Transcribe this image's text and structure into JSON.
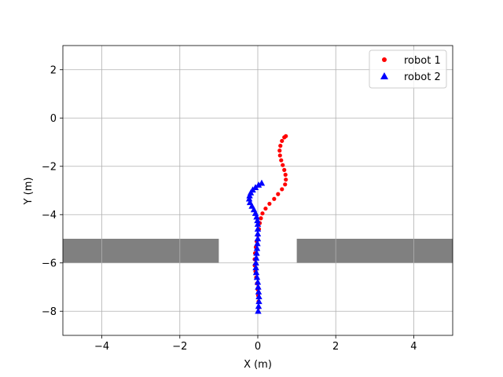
{
  "chart_data": {
    "type": "scatter",
    "xlabel": "X (m)",
    "ylabel": "Y (m)",
    "xlim": [
      -5,
      5
    ],
    "ylim": [
      -9,
      3
    ],
    "xticks": [
      -4,
      -2,
      0,
      2,
      4
    ],
    "yticks": [
      -8,
      -6,
      -4,
      -2,
      0,
      2
    ],
    "xtick_labels": [
      "−4",
      "−2",
      "0",
      "2",
      "4"
    ],
    "ytick_labels": [
      "−8",
      "−6",
      "−4",
      "−2",
      "0",
      "2"
    ],
    "grid": true,
    "legend": {
      "placement": "top-right"
    },
    "obstacles": [
      {
        "x0": -5,
        "x1": -1,
        "y0": -6,
        "y1": -5,
        "color": "#808080"
      },
      {
        "x0": 1,
        "x1": 5,
        "y0": -6,
        "y1": -5,
        "color": "#808080"
      }
    ],
    "series": [
      {
        "name": "robot 1",
        "marker": "circle",
        "color": "#ff0000",
        "points": [
          [
            0.72,
            -0.75
          ],
          [
            0.68,
            -0.8
          ],
          [
            0.62,
            -0.95
          ],
          [
            0.58,
            -1.15
          ],
          [
            0.56,
            -1.35
          ],
          [
            0.57,
            -1.55
          ],
          [
            0.6,
            -1.75
          ],
          [
            0.64,
            -1.95
          ],
          [
            0.68,
            -2.15
          ],
          [
            0.71,
            -2.35
          ],
          [
            0.72,
            -2.55
          ],
          [
            0.7,
            -2.75
          ],
          [
            0.62,
            -2.95
          ],
          [
            0.52,
            -3.15
          ],
          [
            0.42,
            -3.35
          ],
          [
            0.3,
            -3.55
          ],
          [
            0.2,
            -3.75
          ],
          [
            0.12,
            -3.95
          ],
          [
            0.08,
            -4.15
          ],
          [
            0.05,
            -4.35
          ],
          [
            0.03,
            -4.6
          ],
          [
            0.0,
            -4.85
          ],
          [
            -0.03,
            -5.1
          ],
          [
            -0.05,
            -5.35
          ],
          [
            -0.07,
            -5.6
          ],
          [
            -0.08,
            -5.85
          ],
          [
            -0.08,
            -6.1
          ],
          [
            -0.06,
            -6.35
          ],
          [
            -0.04,
            -6.6
          ],
          [
            -0.02,
            -6.85
          ],
          [
            0.0,
            -7.1
          ],
          [
            0.01,
            -7.35
          ],
          [
            0.02,
            -7.6
          ],
          [
            0.02,
            -7.85
          ]
        ]
      },
      {
        "name": "robot 2",
        "marker": "triangle",
        "color": "#0000ff",
        "points": [
          [
            0.1,
            -2.7
          ],
          [
            0.02,
            -2.78
          ],
          [
            -0.06,
            -2.88
          ],
          [
            -0.13,
            -2.98
          ],
          [
            -0.18,
            -3.1
          ],
          [
            -0.21,
            -3.22
          ],
          [
            -0.22,
            -3.35
          ],
          [
            -0.2,
            -3.5
          ],
          [
            -0.15,
            -3.65
          ],
          [
            -0.1,
            -3.8
          ],
          [
            -0.06,
            -3.95
          ],
          [
            -0.03,
            -4.1
          ],
          [
            -0.01,
            -4.25
          ],
          [
            0.0,
            -4.4
          ],
          [
            0.0,
            -4.6
          ],
          [
            0.0,
            -4.8
          ],
          [
            0.0,
            -5.0
          ],
          [
            -0.01,
            -5.2
          ],
          [
            -0.02,
            -5.4
          ],
          [
            -0.03,
            -5.6
          ],
          [
            -0.04,
            -5.8
          ],
          [
            -0.05,
            -6.0
          ],
          [
            -0.05,
            -6.2
          ],
          [
            -0.04,
            -6.4
          ],
          [
            -0.02,
            -6.6
          ],
          [
            0.0,
            -6.8
          ],
          [
            0.01,
            -7.0
          ],
          [
            0.02,
            -7.2
          ],
          [
            0.03,
            -7.4
          ],
          [
            0.03,
            -7.6
          ],
          [
            0.02,
            -7.8
          ],
          [
            0.01,
            -8.0
          ]
        ]
      }
    ]
  }
}
